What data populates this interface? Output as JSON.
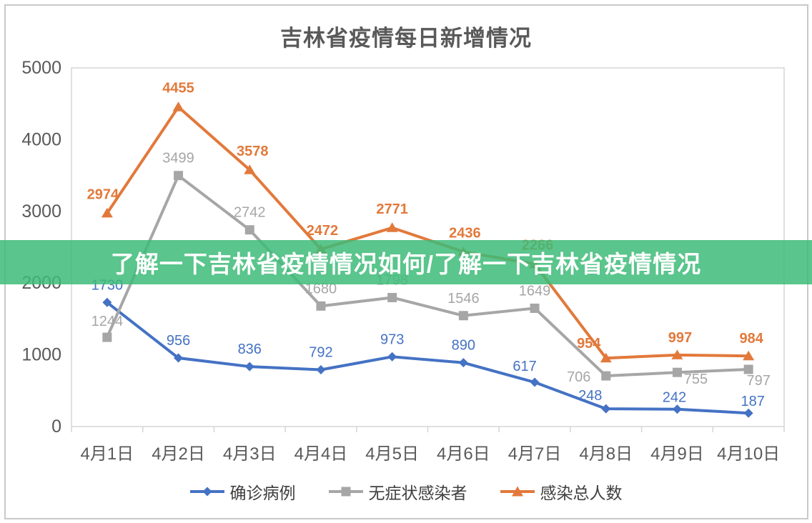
{
  "title": "吉林省疫情每日新增情况",
  "banner": {
    "text": "了解一下吉林省疫情情况如何/了解一下吉林省疫情情况",
    "background": "rgba(61,187,120,0.85)",
    "text_color": "#ffffff"
  },
  "chart_data": {
    "type": "line",
    "title": "吉林省疫情每日新增情况",
    "categories": [
      "4月1日",
      "4月2日",
      "4月3日",
      "4月4日",
      "4月5日",
      "4月6日",
      "4月7日",
      "4月8日",
      "4月9日",
      "4月10日"
    ],
    "series": [
      {
        "name": "确诊病例",
        "color": "#4472C4",
        "marker": "diamond",
        "bold_labels": false,
        "values": [
          1730,
          956,
          836,
          792,
          973,
          890,
          617,
          248,
          242,
          187
        ],
        "label_offsets": [
          [
            0,
            -18
          ],
          [
            0,
            -18
          ],
          [
            0,
            -18
          ],
          [
            0,
            -18
          ],
          [
            0,
            -18
          ],
          [
            0,
            -18
          ],
          [
            -14,
            -16
          ],
          [
            -22,
            -12
          ],
          [
            -4,
            -10
          ],
          [
            6,
            -10
          ]
        ]
      },
      {
        "name": "无症状感染者",
        "color": "#A6A6A6",
        "marker": "square",
        "bold_labels": false,
        "values": [
          1244,
          3499,
          2742,
          1680,
          1798,
          1546,
          1649,
          706,
          755,
          797
        ],
        "label_offsets": [
          [
            0,
            -16
          ],
          [
            0,
            -18
          ],
          [
            0,
            -18
          ],
          [
            0,
            -18
          ],
          [
            0,
            -18
          ],
          [
            0,
            -18
          ],
          [
            0,
            -18
          ],
          [
            -38,
            8
          ],
          [
            26,
            16
          ],
          [
            14,
            22
          ]
        ]
      },
      {
        "name": "感染总人数",
        "color": "#E2793B",
        "marker": "triangle",
        "bold_labels": true,
        "values": [
          2974,
          4455,
          3578,
          2472,
          2771,
          2436,
          2266,
          954,
          997,
          984
        ],
        "label_offsets": [
          [
            -6,
            -20
          ],
          [
            0,
            -20
          ],
          [
            4,
            -20
          ],
          [
            2,
            -20
          ],
          [
            0,
            -20
          ],
          [
            2,
            -20
          ],
          [
            4,
            -20
          ],
          [
            -24,
            -14
          ],
          [
            4,
            -18
          ],
          [
            4,
            -18
          ]
        ]
      }
    ],
    "ylim": [
      0,
      5000
    ],
    "yticks": [
      0,
      1000,
      2000,
      3000,
      4000,
      5000
    ],
    "xlabel": "",
    "ylabel": "",
    "grid": false,
    "legend_position": "bottom",
    "axis_text_color": "#595959",
    "plot_border_color": "#d5d5d5",
    "data_label_font_size": 20
  }
}
